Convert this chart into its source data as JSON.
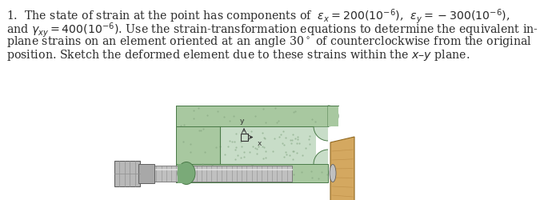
{
  "bg_color": "#ffffff",
  "text_color": "#2a2a2a",
  "font_size": 10.2,
  "fig_width": 7.0,
  "fig_height": 2.51,
  "dpi": 100,
  "clamp_green_light": "#a8c8a0",
  "clamp_green_mid": "#7aaa78",
  "clamp_green_dark": "#4a7a48",
  "clamp_inner_light": "#c8ddc8",
  "bolt_light": "#d0d0d0",
  "bolt_mid": "#a0a0a0",
  "bolt_dark": "#606060",
  "nut_color": "#b8b8b8",
  "wood_light": "#d4a860",
  "wood_mid": "#b88840",
  "wood_dark": "#906820"
}
